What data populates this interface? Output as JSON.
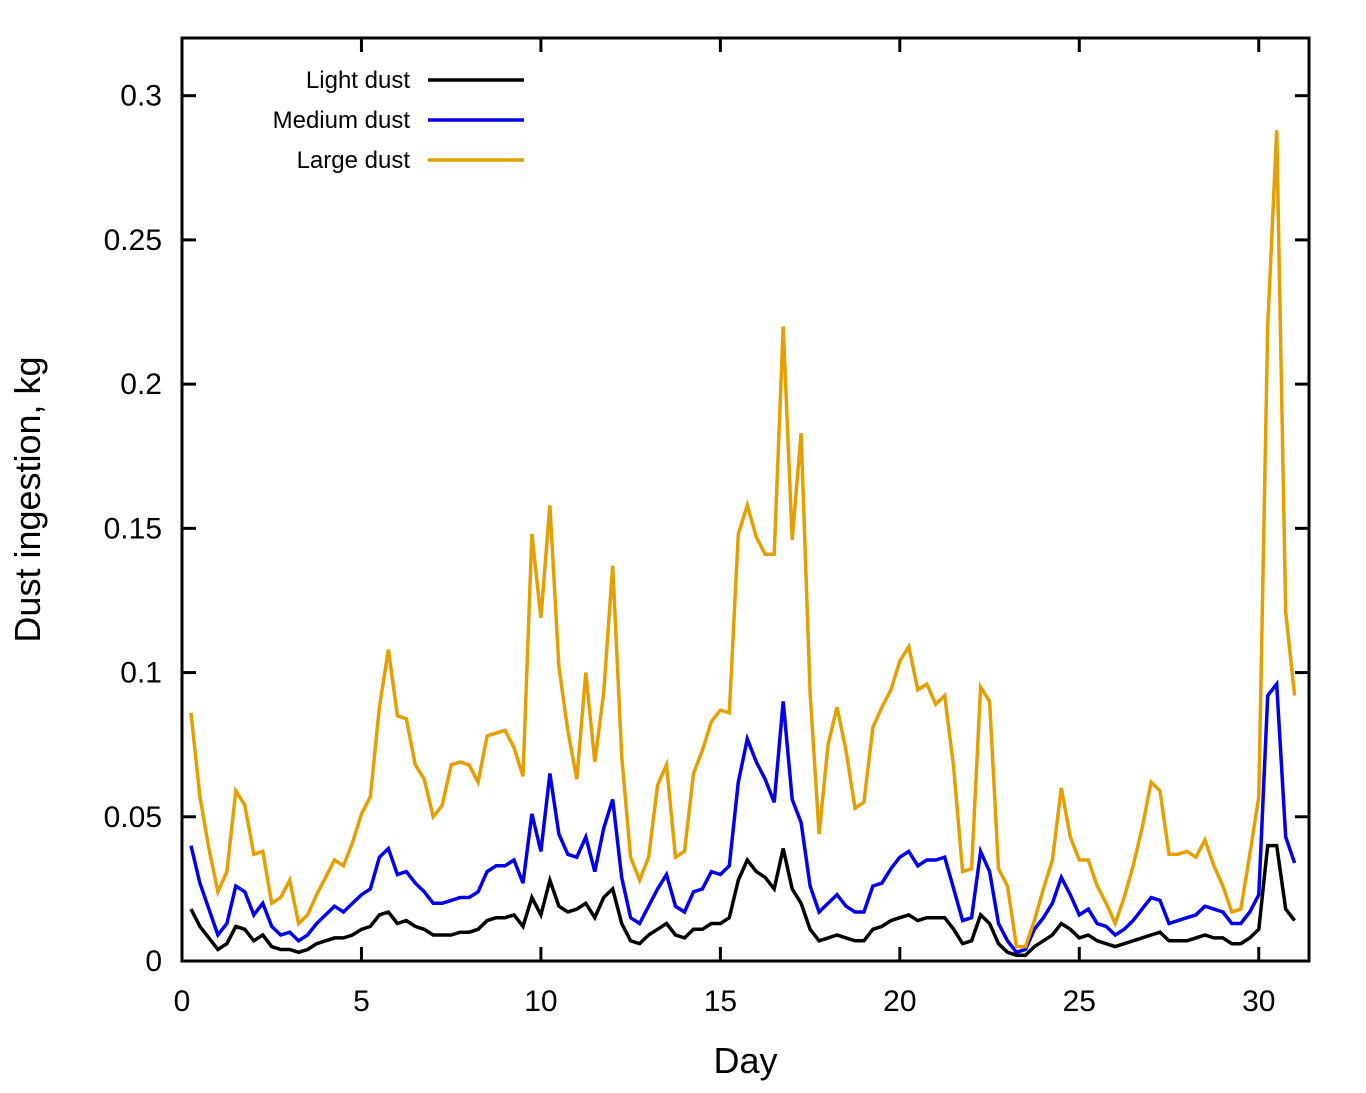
{
  "chart_data": {
    "type": "line",
    "title": "",
    "xlabel": "Day",
    "ylabel": "Dust ingestion, kg",
    "xlim": [
      0,
      31.4
    ],
    "ylim": [
      0,
      0.32
    ],
    "xticks": [
      0,
      5,
      10,
      15,
      20,
      25,
      30
    ],
    "xtick_labels": [
      "0",
      "5",
      "10",
      "15",
      "20",
      "25",
      "30"
    ],
    "yticks": [
      0,
      0.05,
      0.1,
      0.15,
      0.2,
      0.25,
      0.3
    ],
    "ytick_labels": [
      "0",
      "0.05",
      "0.1",
      "0.15",
      "0.2",
      "0.25",
      "0.3"
    ],
    "grid": false,
    "legend_position": "top-left",
    "x": [
      0.25,
      0.5,
      0.75,
      1.0,
      1.25,
      1.5,
      1.75,
      2.0,
      2.25,
      2.5,
      2.75,
      3.0,
      3.25,
      3.5,
      3.75,
      4.0,
      4.25,
      4.5,
      4.75,
      5.0,
      5.25,
      5.5,
      5.75,
      6.0,
      6.25,
      6.5,
      6.75,
      7.0,
      7.25,
      7.5,
      7.75,
      8.0,
      8.25,
      8.5,
      8.75,
      9.0,
      9.25,
      9.5,
      9.75,
      10.0,
      10.25,
      10.5,
      10.75,
      11.0,
      11.25,
      11.5,
      11.75,
      12.0,
      12.25,
      12.5,
      12.75,
      13.0,
      13.25,
      13.5,
      13.75,
      14.0,
      14.25,
      14.5,
      14.75,
      15.0,
      15.25,
      15.5,
      15.75,
      16.0,
      16.25,
      16.5,
      16.75,
      17.0,
      17.25,
      17.5,
      17.75,
      18.0,
      18.25,
      18.5,
      18.75,
      19.0,
      19.25,
      19.5,
      19.75,
      20.0,
      20.25,
      20.5,
      20.75,
      21.0,
      21.25,
      21.5,
      21.75,
      22.0,
      22.25,
      22.5,
      22.75,
      23.0,
      23.25,
      23.5,
      23.75,
      24.0,
      24.25,
      24.5,
      24.75,
      25.0,
      25.25,
      25.5,
      25.75,
      26.0,
      26.25,
      26.5,
      26.75,
      27.0,
      27.25,
      27.5,
      27.75,
      28.0,
      28.25,
      28.5,
      28.75,
      29.0,
      29.25,
      29.5,
      29.75,
      30.0,
      30.25,
      30.5,
      30.75,
      31.0
    ],
    "series": [
      {
        "name": "Light dust",
        "color": "#000000",
        "values": [
          0.018,
          0.012,
          0.008,
          0.004,
          0.006,
          0.012,
          0.011,
          0.007,
          0.009,
          0.005,
          0.004,
          0.004,
          0.003,
          0.004,
          0.006,
          0.007,
          0.008,
          0.008,
          0.009,
          0.011,
          0.012,
          0.016,
          0.017,
          0.013,
          0.014,
          0.012,
          0.011,
          0.009,
          0.009,
          0.009,
          0.01,
          0.01,
          0.011,
          0.014,
          0.015,
          0.015,
          0.016,
          0.012,
          0.022,
          0.016,
          0.028,
          0.019,
          0.017,
          0.018,
          0.02,
          0.015,
          0.022,
          0.025,
          0.013,
          0.007,
          0.006,
          0.009,
          0.011,
          0.013,
          0.009,
          0.008,
          0.011,
          0.011,
          0.013,
          0.013,
          0.015,
          0.028,
          0.035,
          0.031,
          0.029,
          0.025,
          0.039,
          0.025,
          0.02,
          0.011,
          0.007,
          0.008,
          0.009,
          0.008,
          0.007,
          0.007,
          0.011,
          0.012,
          0.014,
          0.015,
          0.016,
          0.014,
          0.015,
          0.015,
          0.015,
          0.011,
          0.006,
          0.007,
          0.016,
          0.013,
          0.006,
          0.003,
          0.002,
          0.002,
          0.005,
          0.007,
          0.009,
          0.013,
          0.011,
          0.008,
          0.009,
          0.007,
          0.006,
          0.005,
          0.006,
          0.007,
          0.008,
          0.009,
          0.01,
          0.007,
          0.007,
          0.007,
          0.008,
          0.009,
          0.008,
          0.008,
          0.006,
          0.006,
          0.008,
          0.011,
          0.04,
          0.04,
          0.018,
          0.014
        ]
      },
      {
        "name": "Medium dust",
        "color": "#0000ee",
        "values": [
          0.04,
          0.027,
          0.018,
          0.009,
          0.013,
          0.026,
          0.024,
          0.016,
          0.02,
          0.012,
          0.009,
          0.01,
          0.007,
          0.009,
          0.013,
          0.016,
          0.019,
          0.017,
          0.02,
          0.023,
          0.025,
          0.036,
          0.039,
          0.03,
          0.031,
          0.027,
          0.024,
          0.02,
          0.02,
          0.021,
          0.022,
          0.022,
          0.024,
          0.031,
          0.033,
          0.033,
          0.035,
          0.027,
          0.051,
          0.038,
          0.065,
          0.044,
          0.037,
          0.036,
          0.043,
          0.031,
          0.046,
          0.056,
          0.029,
          0.015,
          0.013,
          0.019,
          0.025,
          0.03,
          0.019,
          0.017,
          0.024,
          0.025,
          0.031,
          0.03,
          0.033,
          0.062,
          0.077,
          0.069,
          0.063,
          0.055,
          0.09,
          0.056,
          0.048,
          0.026,
          0.017,
          0.02,
          0.023,
          0.019,
          0.017,
          0.017,
          0.026,
          0.027,
          0.032,
          0.036,
          0.038,
          0.033,
          0.035,
          0.035,
          0.036,
          0.025,
          0.014,
          0.015,
          0.038,
          0.031,
          0.013,
          0.007,
          0.003,
          0.004,
          0.011,
          0.015,
          0.02,
          0.029,
          0.023,
          0.016,
          0.018,
          0.013,
          0.012,
          0.009,
          0.011,
          0.014,
          0.018,
          0.022,
          0.021,
          0.013,
          0.014,
          0.015,
          0.016,
          0.019,
          0.018,
          0.017,
          0.013,
          0.013,
          0.017,
          0.023,
          0.092,
          0.096,
          0.043,
          0.034
        ]
      },
      {
        "name": "Large dust",
        "color": "#e69f00",
        "values": [
          0.086,
          0.057,
          0.039,
          0.024,
          0.031,
          0.059,
          0.054,
          0.037,
          0.038,
          0.02,
          0.022,
          0.028,
          0.013,
          0.016,
          0.023,
          0.029,
          0.035,
          0.033,
          0.041,
          0.051,
          0.057,
          0.088,
          0.108,
          0.085,
          0.084,
          0.068,
          0.063,
          0.05,
          0.054,
          0.068,
          0.069,
          0.068,
          0.062,
          0.078,
          0.079,
          0.08,
          0.074,
          0.064,
          0.148,
          0.119,
          0.158,
          0.102,
          0.08,
          0.063,
          0.1,
          0.069,
          0.093,
          0.137,
          0.071,
          0.036,
          0.028,
          0.036,
          0.061,
          0.068,
          0.036,
          0.038,
          0.065,
          0.073,
          0.083,
          0.087,
          0.086,
          0.148,
          0.158,
          0.147,
          0.141,
          0.141,
          0.22,
          0.146,
          0.183,
          0.093,
          0.044,
          0.075,
          0.088,
          0.073,
          0.053,
          0.055,
          0.081,
          0.088,
          0.094,
          0.104,
          0.109,
          0.094,
          0.096,
          0.089,
          0.092,
          0.067,
          0.031,
          0.032,
          0.095,
          0.09,
          0.032,
          0.026,
          0.005,
          0.005,
          0.014,
          0.025,
          0.035,
          0.06,
          0.043,
          0.035,
          0.035,
          0.026,
          0.02,
          0.013,
          0.022,
          0.033,
          0.046,
          0.062,
          0.059,
          0.037,
          0.037,
          0.038,
          0.036,
          0.042,
          0.033,
          0.026,
          0.017,
          0.018,
          0.037,
          0.057,
          0.22,
          0.288,
          0.121,
          0.092
        ]
      }
    ]
  }
}
